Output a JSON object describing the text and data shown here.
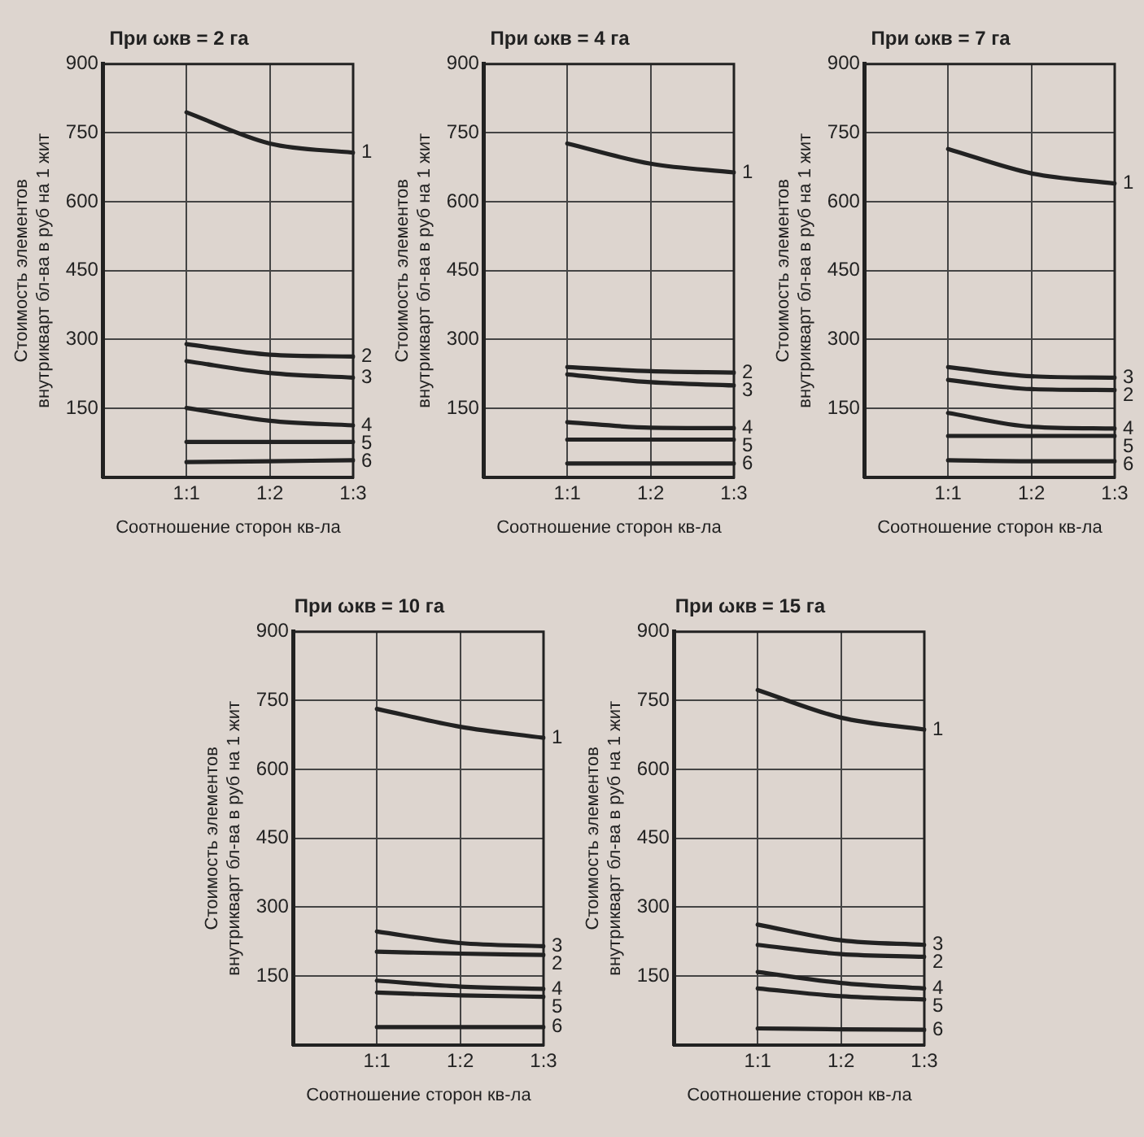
{
  "chart_data": [
    {
      "type": "line",
      "title": "При ωкв = 2 га",
      "xlabel": "Соотношение сторон кв-ла",
      "ylabel": "Стоимость элементов\nвнутрикварт бл-ва в руб на 1 жит",
      "categories": [
        null,
        "1:1",
        "1:2",
        "1:3"
      ],
      "ylim": [
        0,
        900
      ],
      "yticks": [
        150,
        300,
        450,
        600,
        750,
        900
      ],
      "grid": true,
      "legend": false,
      "marker": "none",
      "line_style": "solid",
      "series": [
        {
          "name": "1",
          "color": "#222222",
          "values": [
            null,
            795,
            727,
            707
          ]
        },
        {
          "name": "2",
          "color": "#222222",
          "values": [
            null,
            290,
            267,
            263
          ]
        },
        {
          "name": "3",
          "color": "#222222",
          "values": [
            null,
            253,
            227,
            217
          ]
        },
        {
          "name": "4",
          "color": "#222222",
          "values": [
            null,
            151,
            123,
            113
          ]
        },
        {
          "name": "5",
          "color": "#222222",
          "values": [
            null,
            77,
            77,
            77
          ]
        },
        {
          "name": "6",
          "color": "#222222",
          "values": [
            null,
            33,
            35,
            37
          ]
        }
      ]
    },
    {
      "type": "line",
      "title": "При ωкв = 4 га",
      "xlabel": "Соотношение сторон кв-ла",
      "ylabel": "Стоимость элементов\nвнутрикварт бл-ва в руб на 1 жит",
      "categories": [
        null,
        "1:1",
        "1:2",
        "1:3"
      ],
      "ylim": [
        0,
        900
      ],
      "yticks": [
        150,
        300,
        450,
        600,
        750,
        900
      ],
      "grid": true,
      "legend": false,
      "marker": "none",
      "line_style": "solid",
      "series": [
        {
          "name": "1",
          "color": "#222222",
          "values": [
            null,
            727,
            683,
            664
          ]
        },
        {
          "name": "2",
          "color": "#222222",
          "values": [
            null,
            240,
            231,
            228
          ]
        },
        {
          "name": "3",
          "color": "#222222",
          "values": [
            null,
            224,
            207,
            200
          ]
        },
        {
          "name": "4",
          "color": "#222222",
          "values": [
            null,
            120,
            108,
            107
          ]
        },
        {
          "name": "5",
          "color": "#222222",
          "values": [
            null,
            82,
            82,
            82
          ]
        },
        {
          "name": "6",
          "color": "#222222",
          "values": [
            null,
            30,
            30,
            30
          ]
        }
      ]
    },
    {
      "type": "line",
      "title": "При ωкв = 7 га",
      "xlabel": "Соотношение сторон кв-ла",
      "ylabel": "Стоимость элементов\nвнутрикварт бл-ва в руб на 1 жит",
      "categories": [
        null,
        "1:1",
        "1:2",
        "1:3"
      ],
      "ylim": [
        0,
        900
      ],
      "yticks": [
        150,
        300,
        450,
        600,
        750,
        900
      ],
      "grid": true,
      "legend": false,
      "marker": "none",
      "line_style": "solid",
      "series": [
        {
          "name": "1",
          "color": "#222222",
          "values": [
            null,
            715,
            662,
            640
          ]
        },
        {
          "name": "2",
          "color": "#222222",
          "values": [
            null,
            212,
            192,
            190
          ]
        },
        {
          "name": "3",
          "color": "#222222",
          "values": [
            null,
            240,
            220,
            217
          ]
        },
        {
          "name": "4",
          "color": "#222222",
          "values": [
            null,
            140,
            110,
            106
          ]
        },
        {
          "name": "5",
          "color": "#222222",
          "values": [
            null,
            90,
            90,
            90
          ]
        },
        {
          "name": "6",
          "color": "#222222",
          "values": [
            null,
            37,
            35,
            35
          ]
        }
      ]
    },
    {
      "type": "line",
      "title": "При ωкв = 10 га",
      "xlabel": "Соотношение сторон кв-ла",
      "ylabel": "Стоимость элементов\nвнутрикварт бл-ва в руб на 1 жит",
      "categories": [
        null,
        "1:1",
        "1:2",
        "1:3"
      ],
      "ylim": [
        0,
        900
      ],
      "yticks": [
        150,
        300,
        450,
        600,
        750,
        900
      ],
      "grid": true,
      "legend": false,
      "marker": "none",
      "line_style": "solid",
      "series": [
        {
          "name": "1",
          "color": "#222222",
          "values": [
            null,
            732,
            693,
            669
          ]
        },
        {
          "name": "2",
          "color": "#222222",
          "values": [
            null,
            203,
            199,
            196
          ]
        },
        {
          "name": "3",
          "color": "#222222",
          "values": [
            null,
            247,
            222,
            215
          ]
        },
        {
          "name": "4",
          "color": "#222222",
          "values": [
            null,
            140,
            127,
            122
          ]
        },
        {
          "name": "5",
          "color": "#222222",
          "values": [
            null,
            114,
            108,
            105
          ]
        },
        {
          "name": "6",
          "color": "#222222",
          "values": [
            null,
            39,
            39,
            39
          ]
        }
      ]
    },
    {
      "type": "line",
      "title": "При ωкв = 15 га",
      "xlabel": "Соотношение сторон кв-ла",
      "ylabel": "Стоимость элементов\nвнутрикварт бл-ва в руб на 1 жит",
      "categories": [
        null,
        "1:1",
        "1:2",
        "1:3"
      ],
      "ylim": [
        0,
        900
      ],
      "yticks": [
        150,
        300,
        450,
        600,
        750,
        900
      ],
      "grid": true,
      "legend": false,
      "marker": "none",
      "line_style": "solid",
      "series": [
        {
          "name": "1",
          "color": "#222222",
          "values": [
            null,
            773,
            713,
            687
          ]
        },
        {
          "name": "2",
          "color": "#222222",
          "values": [
            null,
            218,
            198,
            192
          ]
        },
        {
          "name": "3",
          "color": "#222222",
          "values": [
            null,
            262,
            228,
            218
          ]
        },
        {
          "name": "4",
          "color": "#222222",
          "values": [
            null,
            159,
            135,
            123
          ]
        },
        {
          "name": "5",
          "color": "#222222",
          "values": [
            null,
            123,
            106,
            99
          ]
        },
        {
          "name": "6",
          "color": "#222222",
          "values": [
            null,
            36,
            34,
            33
          ]
        }
      ]
    }
  ]
}
